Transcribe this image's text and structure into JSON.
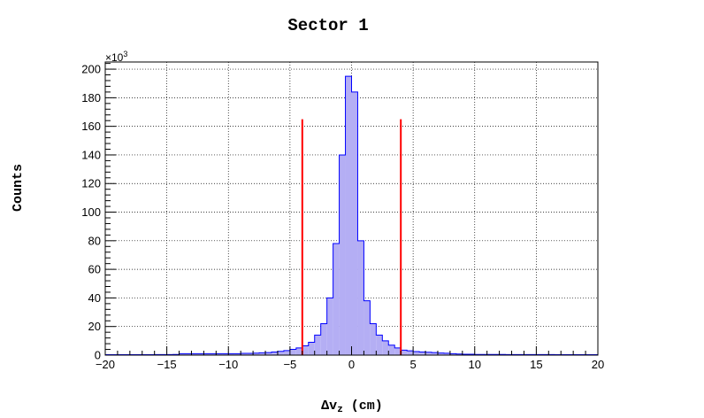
{
  "chart_data": {
    "type": "bar",
    "title": "Sector 1",
    "xlabel": "Δv",
    "xlabel_subscript": "z",
    "xlabel_unit": "(cm)",
    "ylabel": "Counts",
    "y_multiplier_label": "×10",
    "y_multiplier_exponent": "3",
    "xlim": [
      -20,
      20
    ],
    "ylim": [
      0,
      205
    ],
    "xticks": [
      -20,
      -15,
      -10,
      -5,
      0,
      5,
      10,
      15,
      20
    ],
    "xtick_labels": [
      "−20",
      "−15",
      "−10",
      "−5",
      "0",
      "5",
      "10",
      "15",
      "20"
    ],
    "yticks": [
      0,
      20,
      40,
      60,
      80,
      100,
      120,
      140,
      160,
      180,
      200
    ],
    "ytick_labels": [
      "0",
      "20",
      "40",
      "60",
      "80",
      "100",
      "120",
      "140",
      "160",
      "180",
      "200"
    ],
    "grid": true,
    "series": [
      {
        "fill_color": "#b4aef4",
        "line_color": "#0000ff",
        "bin_edges": [
          -20.0,
          -19.5,
          -19.0,
          -18.5,
          -18.0,
          -17.5,
          -17.0,
          -16.5,
          -16.0,
          -15.5,
          -15.0,
          -14.5,
          -14.0,
          -13.5,
          -13.0,
          -12.5,
          -12.0,
          -11.5,
          -11.0,
          -10.5,
          -10.0,
          -9.5,
          -9.0,
          -8.5,
          -8.0,
          -7.5,
          -7.0,
          -6.5,
          -6.0,
          -5.5,
          -5.0,
          -4.5,
          -4.0,
          -3.5,
          -3.0,
          -2.5,
          -2.0,
          -1.5,
          -1.0,
          -0.5,
          0.0,
          0.5,
          1.0,
          1.5,
          2.0,
          2.5,
          3.0,
          3.5,
          4.0,
          4.5,
          5.0,
          5.5,
          6.0,
          6.5,
          7.0,
          7.5,
          8.0,
          8.5,
          9.0,
          9.5,
          10.0,
          10.5,
          11.0,
          11.5,
          12.0,
          12.5,
          13.0,
          13.5,
          14.0,
          14.5,
          15.0,
          15.5,
          16.0,
          16.5,
          17.0,
          17.5,
          18.0,
          18.5,
          19.0,
          19.5,
          20.0
        ],
        "values": [
          0.3,
          0.3,
          0.3,
          0.3,
          0.3,
          0.3,
          0.3,
          0.3,
          0.4,
          0.4,
          0.4,
          0.5,
          1.0,
          1.0,
          1.0,
          1.0,
          1.0,
          1.0,
          1.0,
          1.0,
          1.0,
          1.0,
          1.2,
          1.2,
          1.4,
          1.6,
          1.8,
          2.2,
          2.6,
          3.2,
          4.0,
          5.0,
          6.5,
          9.0,
          14.0,
          22.0,
          40.0,
          78.0,
          140.0,
          195.0,
          184.0,
          80.0,
          38.0,
          22.0,
          14.0,
          10.0,
          7.0,
          5.0,
          3.5,
          3.0,
          2.5,
          2.2,
          2.0,
          1.8,
          1.5,
          1.3,
          1.0,
          0.8,
          0.6,
          0.6,
          0.5,
          0.5,
          0.5,
          0.5,
          0.5,
          0.4,
          0.4,
          0.4,
          0.4,
          0.4,
          0.4,
          0.4,
          0.4,
          0.3,
          0.3,
          0.3,
          0.3,
          0.3,
          0.3,
          0.3
        ]
      }
    ],
    "cut_lines": {
      "color": "#ff0000",
      "x": [
        -4,
        4
      ],
      "y_top": 165
    }
  }
}
